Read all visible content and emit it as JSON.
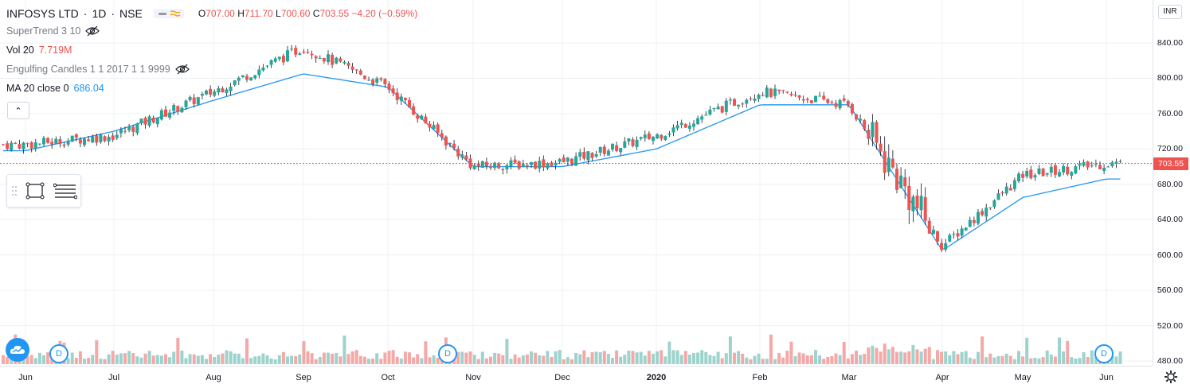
{
  "symbol": {
    "name": "INFOSYS LTD",
    "interval": "1D",
    "exchange": "NSE",
    "sep1": "·",
    "sep2": "·"
  },
  "ohlc": {
    "o_key": "O",
    "o_val": "707.00",
    "h_key": "H",
    "h_val": "711.70",
    "l_key": "L",
    "l_val": "700.60",
    "c_key": "C",
    "c_val": "703.55",
    "change": "−4.20 (−0.59%)"
  },
  "indicators": {
    "supertrend": "SuperTrend 3 10",
    "vol_label": "Vol 20",
    "vol_value": "7.719M",
    "engulfing": "Engulfing Candles 1 1 2017 1 1 9999",
    "ma_label": "MA 20 close 0",
    "ma_value": "686.04"
  },
  "collapse_glyph": "⌃",
  "price_axis": {
    "currency": "INR",
    "last_price": "703.55",
    "ticks": [
      "840.00",
      "800.00",
      "760.00",
      "720.00",
      "680.00",
      "640.00",
      "600.00",
      "560.00",
      "520.00",
      "480.00"
    ]
  },
  "time_axis": {
    "labels": [
      "Jun",
      "Jul",
      "Aug",
      "Sep",
      "Oct",
      "Nov",
      "Dec",
      "2020",
      "Feb",
      "Mar",
      "Apr",
      "May",
      "Jun"
    ]
  },
  "badges": {
    "dividend": "D"
  },
  "colors": {
    "up": "#26a69a",
    "down": "#ef5350",
    "ma": "#2196f3",
    "vol_up": "#9ed3cd",
    "vol_down": "#f4a9a7",
    "grid": "#eef0f3",
    "last_price_line": "#ef5350"
  },
  "icons": [
    "eye-off-icon",
    "chart-logo-icon",
    "gear-icon",
    "rectangle-tool-icon",
    "lines-tool-icon"
  ],
  "chart_data": {
    "type": "candlestick",
    "title": "INFOSYS LTD · 1D · NSE",
    "ylim": [
      470,
      860
    ],
    "last_close": 703.55,
    "series": [
      {
        "name": "price",
        "points": [
          {
            "x": "Jun",
            "close": 725
          },
          {
            "x": "Jul",
            "close": 735
          },
          {
            "x": "Aug",
            "close": 785
          },
          {
            "x": "Sep",
            "close": 835
          },
          {
            "x": "Oct",
            "close": 790
          },
          {
            "x": "Nov",
            "close": 700
          },
          {
            "x": "Dec",
            "close": 705
          },
          {
            "x": "2020",
            "close": 735
          },
          {
            "x": "Feb",
            "close": 785
          },
          {
            "x": "Mar",
            "close": 770
          },
          {
            "x": "Apr",
            "close": 610
          },
          {
            "x": "May",
            "close": 690
          },
          {
            "x": "Jun",
            "close": 703.55
          }
        ]
      },
      {
        "name": "MA 20 close 0",
        "points": [
          {
            "x": "Jun",
            "y": 718
          },
          {
            "x": "Jul",
            "y": 740
          },
          {
            "x": "Aug",
            "y": 775
          },
          {
            "x": "Sep",
            "y": 805
          },
          {
            "x": "Oct",
            "y": 790
          },
          {
            "x": "Nov",
            "y": 700
          },
          {
            "x": "Dec",
            "y": 700
          },
          {
            "x": "2020",
            "y": 720
          },
          {
            "x": "Feb",
            "y": 770
          },
          {
            "x": "Mar",
            "y": 770
          },
          {
            "x": "Apr",
            "y": 605
          },
          {
            "x": "May",
            "y": 665
          },
          {
            "x": "Jun",
            "y": 686.04
          }
        ]
      }
    ]
  }
}
